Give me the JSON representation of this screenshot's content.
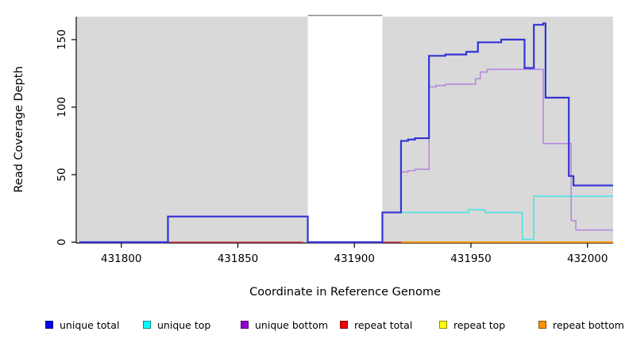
{
  "figure": {
    "x_axis_label": "Coordinate in Reference Genome",
    "y_axis_label": "Read Coverage Depth"
  },
  "legend": {
    "items": [
      {
        "label": "unique total",
        "color": "#0000EE"
      },
      {
        "label": "unique top",
        "color": "#00FFFF"
      },
      {
        "label": "unique bottom",
        "color": "#9400D3"
      },
      {
        "label": "repeat total",
        "color": "#EE0000"
      },
      {
        "label": "repeat top",
        "color": "#FFFF00"
      },
      {
        "label": "repeat bottom",
        "color": "#FF9000"
      }
    ]
  },
  "chart_data": {
    "type": "line",
    "subtype": "step-after-coverage-plot",
    "title": "",
    "xlabel": "Coordinate in Reference Genome",
    "ylabel": "Read Coverage Depth",
    "x_ticks": [
      431800,
      431850,
      431900,
      431950,
      432000
    ],
    "y_ticks": [
      0,
      50,
      100,
      150
    ],
    "xlim": [
      431781,
      432011
    ],
    "ylim": [
      0,
      167
    ],
    "grid": false,
    "legend_position": "bottom",
    "background": {
      "mapped_region_color": "#D9D9D9",
      "mapped_regions": [
        [
          431781,
          431880
        ],
        [
          431912,
          432011
        ]
      ],
      "unmapped_gap": [
        431880,
        431912
      ],
      "gap_top_border_color": "#8C8C8C"
    },
    "axis_color": "#000000",
    "series": [
      {
        "name": "repeat top",
        "color": "#FFFF00",
        "width": 1.4,
        "segments": [
          [
            [
              431920,
              0
            ],
            [
              432011,
              0
            ]
          ]
        ]
      },
      {
        "name": "repeat total",
        "color": "#D23C50",
        "width": 1.4,
        "segments": [
          [
            [
              431820,
              0
            ],
            [
              431878,
              0
            ]
          ],
          [
            [
              431912,
              0
            ],
            [
              431920,
              0
            ]
          ]
        ]
      },
      {
        "name": "repeat bottom",
        "color": "#FF9000",
        "width": 1.8,
        "segments": [
          [
            [
              431920,
              0
            ],
            [
              432011,
              0
            ]
          ]
        ]
      },
      {
        "name": "unique top",
        "color": "#4FE3E3",
        "width": 1.6,
        "segments": [
          [
            [
              431912,
              22
            ],
            [
              431949,
              24
            ],
            [
              431956,
              22
            ],
            [
              431972,
              2
            ],
            [
              431977,
              34
            ],
            [
              432011,
              34
            ]
          ]
        ]
      },
      {
        "name": "unique bottom",
        "color": "#B888DE",
        "width": 1.6,
        "segments": [
          [
            [
              431920,
              52
            ],
            [
              431923,
              53
            ],
            [
              431926,
              54
            ],
            [
              431932,
              115
            ],
            [
              431935,
              116
            ],
            [
              431939,
              117
            ],
            [
              431952,
              121
            ],
            [
              431954,
              126
            ],
            [
              431957,
              128
            ],
            [
              431981,
              73
            ],
            [
              431993,
              16
            ],
            [
              431995,
              9
            ],
            [
              432011,
              9
            ]
          ]
        ]
      },
      {
        "name": "unique total",
        "color": "#3333D6",
        "width": 2.2,
        "segments": [
          [
            [
              431782,
              0
            ],
            [
              431820,
              19
            ],
            [
              431880,
              0
            ],
            [
              431912,
              22
            ],
            [
              431920,
              75
            ],
            [
              431923,
              76
            ],
            [
              431926,
              77
            ],
            [
              431932,
              138
            ],
            [
              431939,
              139
            ],
            [
              431948,
              141
            ],
            [
              431953,
              148
            ],
            [
              431963,
              150
            ],
            [
              431973,
              129
            ],
            [
              431977,
              161
            ],
            [
              431981,
              162
            ],
            [
              431982,
              107
            ],
            [
              431992,
              49
            ],
            [
              431994,
              42
            ],
            [
              432011,
              42
            ]
          ]
        ]
      }
    ]
  }
}
